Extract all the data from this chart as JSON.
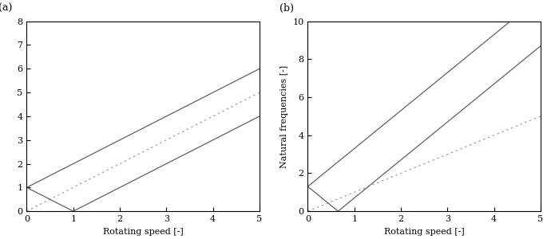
{
  "subplot_a": {
    "label": "(a)",
    "omega0": 1.0,
    "n": 1,
    "dotted_n": 1,
    "ylim": [
      0,
      8
    ],
    "yticks": [
      0,
      1,
      2,
      3,
      4,
      5,
      6,
      7,
      8
    ],
    "xlim": [
      0,
      5
    ],
    "xticks": [
      0,
      1,
      2,
      3,
      4,
      5
    ],
    "xlabel": "Rotating speed [-]",
    "ylabel": ""
  },
  "subplot_b": {
    "label": "(b)",
    "omega0": 1.3,
    "n": 2,
    "dotted_n": 1,
    "ylim": [
      0,
      10
    ],
    "yticks": [
      0,
      2,
      4,
      6,
      8,
      10
    ],
    "xlim": [
      0,
      5
    ],
    "xticks": [
      0,
      1,
      2,
      3,
      4,
      5
    ],
    "xlabel": "Rotating speed [-]",
    "ylabel": "Natural frequencies [-]"
  },
  "line_color_solid": "#606060",
  "line_color_dotted": "#a0a0a0",
  "line_width": 0.9,
  "dotted_linewidth": 0.9,
  "background_color": "#ffffff",
  "font_size_label": 8,
  "font_size_tick": 8,
  "font_size_sublabel": 9
}
